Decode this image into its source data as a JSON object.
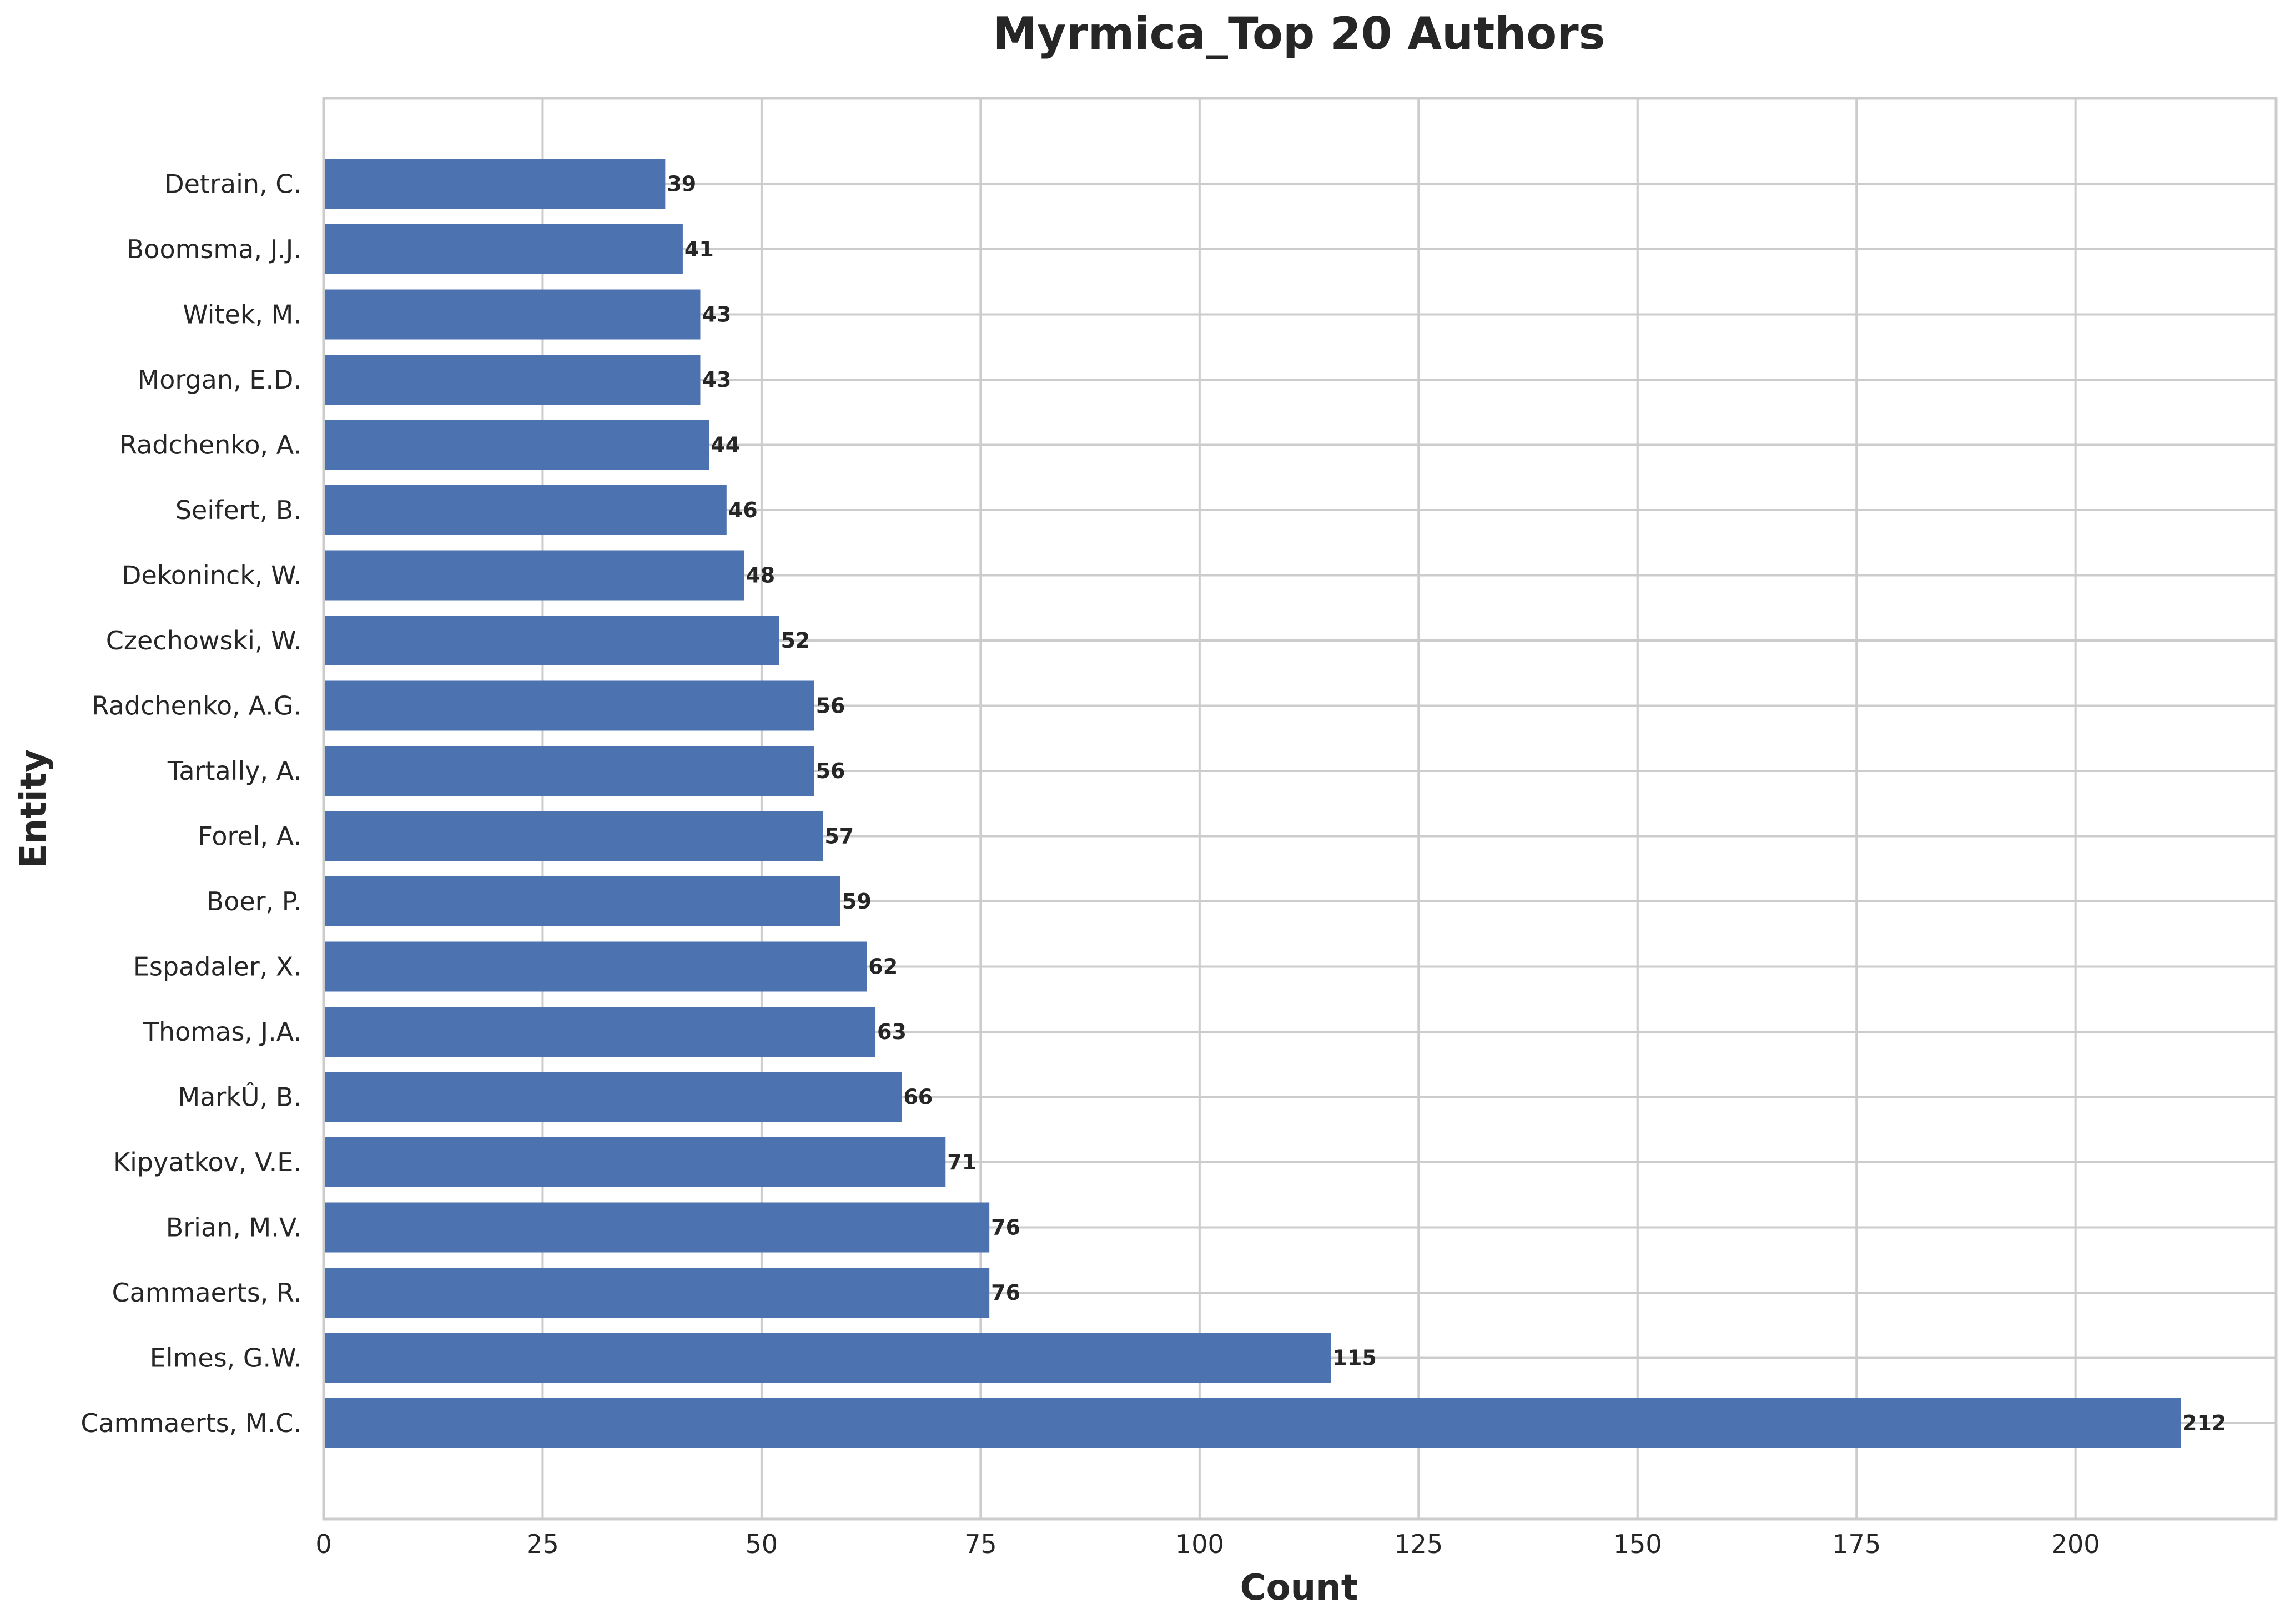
{
  "chart_data": {
    "type": "bar",
    "orientation": "horizontal",
    "title": "Myrmica_Top 20 Authors",
    "xlabel": "Count",
    "ylabel": "Entity",
    "xlim": [
      0,
      223
    ],
    "xticks": [
      0,
      25,
      50,
      75,
      100,
      125,
      150,
      175,
      200
    ],
    "grid": true,
    "bar_color": "#4c72b0",
    "categories": [
      "Cammaerts, M.C.",
      "Elmes, G.W.",
      "Cammaerts, R.",
      "Brian, M.V.",
      "Kipyatkov, V.E.",
      "MarkÛ, B.",
      "Thomas, J.A.",
      "Espadaler, X.",
      "Boer, P.",
      "Forel, A.",
      "Tartally, A.",
      "Radchenko, A.G.",
      "Czechowski, W.",
      "Dekoninck, W.",
      "Seifert, B.",
      "Radchenko, A.",
      "Morgan, E.D.",
      "Witek, M.",
      "Boomsma, J.J.",
      "Detrain, C."
    ],
    "values": [
      212,
      115,
      76,
      76,
      71,
      66,
      63,
      62,
      59,
      57,
      56,
      56,
      52,
      48,
      46,
      44,
      43,
      43,
      41,
      39
    ]
  }
}
